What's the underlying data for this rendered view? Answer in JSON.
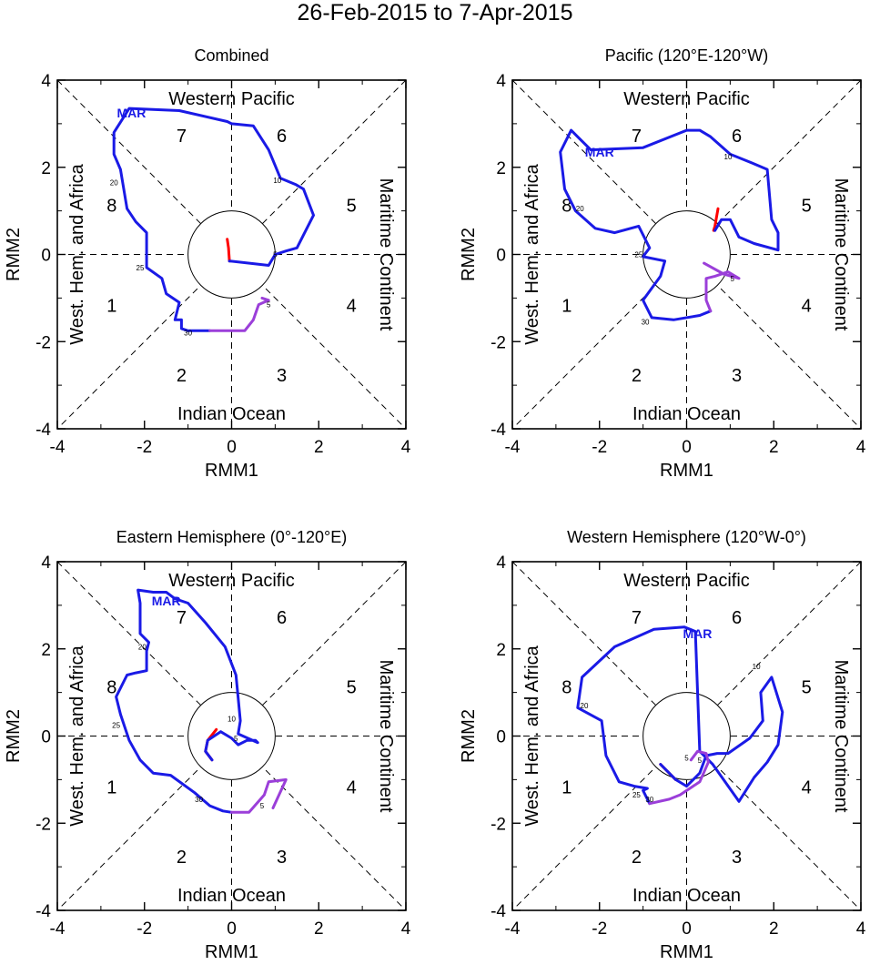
{
  "title": "26-Feb-2015 to 7-Apr-2015",
  "colors": {
    "feb": "#ff0000",
    "mar": "#1a1ae6",
    "apr": "#9b3fd9",
    "axis": "#000000"
  },
  "chart_data": [
    {
      "type": "line",
      "title": "Combined",
      "xlabel": "RMM1",
      "ylabel": "RMM2",
      "xlim": [
        -4,
        4
      ],
      "ylim": [
        -4,
        4
      ],
      "ticks": [
        "-4",
        "-2",
        "0",
        "2",
        "4"
      ],
      "region_labels": {
        "top": "Western Pacific",
        "bottom": "Indian Ocean",
        "left": "West. Hem. and Africa",
        "right": "Maritime Continent"
      },
      "phase_labels": [
        "1",
        "2",
        "3",
        "4",
        "5",
        "6",
        "7",
        "8"
      ],
      "month_label": {
        "text": "MAR",
        "x": -2.3,
        "y": 3.25
      },
      "series": [
        {
          "name": "Feb",
          "color": "#ff0000",
          "x": [
            -0.05,
            -0.07,
            -0.1
          ],
          "y": [
            -0.15,
            0.15,
            0.35
          ]
        },
        {
          "name": "Mar",
          "color": "#1a1ae6",
          "x": [
            -0.05,
            0.85,
            1.0,
            1.25,
            1.5,
            1.88,
            1.65,
            1.48,
            1.12,
            0.85,
            0.5,
            0.0,
            -0.1,
            -1.2,
            -2.35,
            -2.7,
            -2.7,
            -2.55,
            -2.4,
            -2.2,
            -1.95,
            -1.95,
            -1.6,
            -1.5,
            -1.2,
            -1.3,
            -1.15,
            -1.15,
            -1.0,
            -0.7,
            -0.5
          ],
          "y": [
            -0.15,
            -0.25,
            0.0,
            0.08,
            0.15,
            0.9,
            1.5,
            1.6,
            1.75,
            2.4,
            2.95,
            3.0,
            3.05,
            3.3,
            3.35,
            2.8,
            2.3,
            1.95,
            1.05,
            0.75,
            0.5,
            -0.3,
            -0.55,
            -0.9,
            -1.1,
            -1.5,
            -1.5,
            -1.7,
            -1.75,
            -1.75,
            -1.75
          ]
        },
        {
          "name": "Apr",
          "color": "#9b3fd9",
          "x": [
            -0.5,
            0.3,
            0.5,
            0.62,
            0.85,
            0.7
          ],
          "y": [
            -1.75,
            -1.75,
            -1.5,
            -1.15,
            -1.05,
            -1.0
          ]
        }
      ],
      "day_markers": [
        {
          "label": "5",
          "x": 1.0,
          "y": 0.0
        },
        {
          "label": "10",
          "x": 1.05,
          "y": 1.7
        },
        {
          "label": "20",
          "x": -2.7,
          "y": 1.65
        },
        {
          "label": "25",
          "x": -2.1,
          "y": -0.3
        },
        {
          "label": "30",
          "x": -1.0,
          "y": -1.8
        },
        {
          "label": "5",
          "x": 0.85,
          "y": -1.15
        }
      ]
    },
    {
      "type": "line",
      "title": "Pacific (120°E-120°W)",
      "xlabel": "RMM1",
      "ylabel": "RMM2",
      "xlim": [
        -4,
        4
      ],
      "ylim": [
        -4,
        4
      ],
      "ticks": [
        "-4",
        "-2",
        "0",
        "2",
        "4"
      ],
      "region_labels": {
        "top": "Western Pacific",
        "bottom": "Indian Ocean",
        "left": "West. Hem. and Africa",
        "right": "Maritime Continent"
      },
      "phase_labels": [
        "1",
        "2",
        "3",
        "4",
        "5",
        "6",
        "7",
        "8"
      ],
      "month_label": {
        "text": "MAR",
        "x": -2.0,
        "y": 2.35
      },
      "series": [
        {
          "name": "Feb",
          "color": "#ff0000",
          "x": [
            0.72,
            0.65,
            0.62
          ],
          "y": [
            1.05,
            0.65,
            0.55
          ]
        },
        {
          "name": "Mar",
          "color": "#1a1ae6",
          "x": [
            0.65,
            0.8,
            1.0,
            1.2,
            1.55,
            2.1,
            2.1,
            1.95,
            1.85,
            1.5,
            1.0,
            0.55,
            0.3,
            0.0,
            -1.0,
            -2.2,
            -2.65,
            -2.9,
            -2.8,
            -2.55,
            -2.1,
            -1.65,
            -1.1,
            -0.85,
            -1.0,
            -0.5,
            -0.6,
            -1.0,
            -0.8,
            -0.3,
            0.3,
            0.55
          ],
          "y": [
            0.55,
            0.8,
            0.8,
            0.4,
            0.25,
            0.1,
            0.5,
            0.8,
            1.95,
            2.1,
            2.3,
            2.7,
            2.85,
            2.85,
            2.45,
            2.4,
            2.85,
            2.35,
            1.5,
            1.0,
            0.6,
            0.5,
            0.65,
            0.15,
            -0.05,
            -0.15,
            -0.5,
            -1.05,
            -1.45,
            -1.5,
            -1.4,
            -1.3
          ]
        },
        {
          "name": "Apr",
          "color": "#9b3fd9",
          "x": [
            0.55,
            0.45,
            0.45,
            0.65,
            0.95,
            1.2,
            0.85,
            0.4
          ],
          "y": [
            -1.3,
            -1.05,
            -0.55,
            -0.5,
            -0.4,
            -0.55,
            -0.45,
            -0.2
          ]
        }
      ],
      "day_markers": [
        {
          "label": "10",
          "x": 0.95,
          "y": 2.25
        },
        {
          "label": "20",
          "x": -2.45,
          "y": 1.05
        },
        {
          "label": "25",
          "x": -1.1,
          "y": 0.0
        },
        {
          "label": "30",
          "x": -0.95,
          "y": -1.55
        },
        {
          "label": "5",
          "x": 1.05,
          "y": -0.55
        }
      ]
    },
    {
      "type": "line",
      "title": "Eastern Hemisphere (0°-120°E)",
      "xlabel": "RMM1",
      "ylabel": "RMM2",
      "xlim": [
        -4,
        4
      ],
      "ylim": [
        -4,
        4
      ],
      "ticks": [
        "-4",
        "-2",
        "0",
        "2",
        "4"
      ],
      "region_labels": {
        "top": "Western Pacific",
        "bottom": "Indian Ocean",
        "left": "West. Hem. and Africa",
        "right": "Maritime Continent"
      },
      "phase_labels": [
        "1",
        "2",
        "3",
        "4",
        "5",
        "6",
        "7",
        "8"
      ],
      "month_label": {
        "text": "MAR",
        "x": -1.5,
        "y": 3.1
      },
      "series": [
        {
          "name": "Feb",
          "color": "#ff0000",
          "x": [
            -0.45,
            -0.6,
            -0.55,
            -0.35
          ],
          "y": [
            -0.55,
            -0.35,
            -0.1,
            0.15
          ]
        },
        {
          "name": "Mar",
          "color": "#1a1ae6",
          "x": [
            -0.45,
            -0.6,
            -0.55,
            -0.25,
            0.0,
            0.15,
            0.35,
            0.55,
            0.6,
            0.15,
            0.2,
            0.1,
            -0.15,
            -0.6,
            -1.0,
            -1.3,
            -1.5,
            -1.8,
            -2.15,
            -2.1,
            -2.1,
            -2.1,
            -1.9,
            -1.95,
            -1.95,
            -2.2,
            -2.4,
            -2.65,
            -2.55,
            -2.35,
            -2.1,
            -1.8,
            -1.4,
            -0.85,
            -0.5,
            -0.2,
            0.0
          ],
          "y": [
            -0.55,
            -0.35,
            -0.1,
            0.1,
            -0.05,
            -0.2,
            -0.1,
            -0.1,
            -0.15,
            0.05,
            0.35,
            1.4,
            2.05,
            2.6,
            3.05,
            3.15,
            3.3,
            3.3,
            3.35,
            3.05,
            2.7,
            2.35,
            2.15,
            1.95,
            1.5,
            1.45,
            1.4,
            0.9,
            0.5,
            -0.1,
            -0.55,
            -0.85,
            -0.9,
            -1.3,
            -1.6,
            -1.72,
            -1.75
          ]
        },
        {
          "name": "Apr",
          "color": "#9b3fd9",
          "x": [
            0.0,
            0.4,
            0.75,
            0.85,
            1.25,
            0.95
          ],
          "y": [
            -1.75,
            -1.75,
            -1.35,
            -1.05,
            -1.0,
            -1.65
          ]
        }
      ],
      "day_markers": [
        {
          "label": "10",
          "x": 0.0,
          "y": 0.4
        },
        {
          "label": "5",
          "x": 0.1,
          "y": -0.05
        },
        {
          "label": "20",
          "x": -2.05,
          "y": 2.05
        },
        {
          "label": "25",
          "x": -2.65,
          "y": 0.25
        },
        {
          "label": "30",
          "x": -0.75,
          "y": -1.45
        },
        {
          "label": "5",
          "x": 0.7,
          "y": -1.6
        }
      ]
    },
    {
      "type": "line",
      "title": "Western Hemisphere (120°W-0°)",
      "xlabel": "RMM1",
      "ylabel": "RMM2",
      "xlim": [
        -4,
        4
      ],
      "ylim": [
        -4,
        4
      ],
      "ticks": [
        "-4",
        "-2",
        "0",
        "2",
        "4"
      ],
      "region_labels": {
        "top": "Western Pacific",
        "bottom": "Indian Ocean",
        "left": "West. Hem. and Africa",
        "right": "Maritime Continent"
      },
      "phase_labels": [
        "1",
        "2",
        "3",
        "4",
        "5",
        "6",
        "7",
        "8"
      ],
      "month_label": {
        "text": "MAR",
        "x": 0.25,
        "y": 2.35
      },
      "series": [
        {
          "name": "Feb",
          "color": "#ff0000",
          "x": [
            -0.6,
            -0.45,
            -0.25
          ],
          "y": [
            -0.65,
            -0.8,
            -1.0
          ]
        },
        {
          "name": "Mar",
          "color": "#1a1ae6",
          "x": [
            -0.6,
            -0.45,
            -0.25,
            0.0,
            0.3,
            0.45,
            0.7,
            0.95,
            1.45,
            1.75,
            1.7,
            1.95,
            2.2,
            2.1,
            1.85,
            1.55,
            1.2,
            0.6,
            0.3,
            0.2,
            -0.05,
            -0.75,
            -1.65,
            -2.4,
            -2.5,
            -1.95,
            -1.85,
            -1.55,
            -1.2,
            -0.9,
            -1.0,
            -0.85
          ],
          "y": [
            -0.65,
            -0.8,
            -1.0,
            -1.15,
            -0.85,
            -0.45,
            -0.4,
            -0.4,
            -0.05,
            0.35,
            1.0,
            1.35,
            0.55,
            -0.2,
            -0.6,
            -0.95,
            -1.5,
            -0.65,
            -0.35,
            2.4,
            2.5,
            2.45,
            2.05,
            1.35,
            0.65,
            0.35,
            -0.45,
            -1.05,
            -1.15,
            -1.2,
            -1.25,
            -1.55
          ]
        },
        {
          "name": "Apr",
          "color": "#9b3fd9",
          "x": [
            -0.85,
            -0.4,
            -0.15,
            0.3,
            0.5,
            0.45,
            0.25,
            0.1
          ],
          "y": [
            -1.55,
            -1.45,
            -1.35,
            -1.05,
            -0.6,
            -0.4,
            -0.35,
            -0.55
          ]
        }
      ],
      "day_markers": [
        {
          "label": "10",
          "x": 1.6,
          "y": 1.6
        },
        {
          "label": "20",
          "x": -2.35,
          "y": 0.7
        },
        {
          "label": "25",
          "x": -1.15,
          "y": -1.35
        },
        {
          "label": "30",
          "x": -0.85,
          "y": -1.45
        },
        {
          "label": "5",
          "x": 0.0,
          "y": -0.5
        },
        {
          "label": "5",
          "x": 0.3,
          "y": -0.55
        }
      ]
    }
  ]
}
